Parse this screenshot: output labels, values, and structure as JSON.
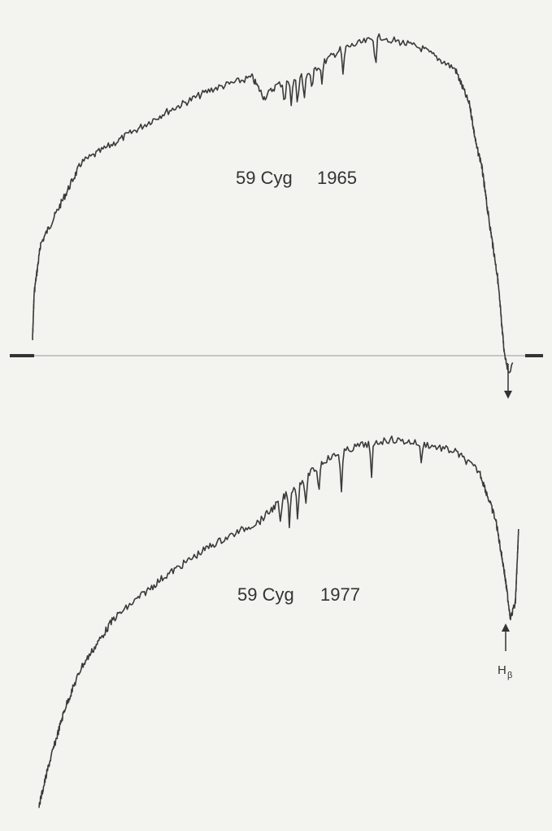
{
  "spectra": [
    {
      "star": "59 Cyg",
      "year": "1965"
    },
    {
      "star": "59 Cyg",
      "year": "1977"
    }
  ],
  "line_marker": {
    "text": "H",
    "subscript": "β"
  }
}
